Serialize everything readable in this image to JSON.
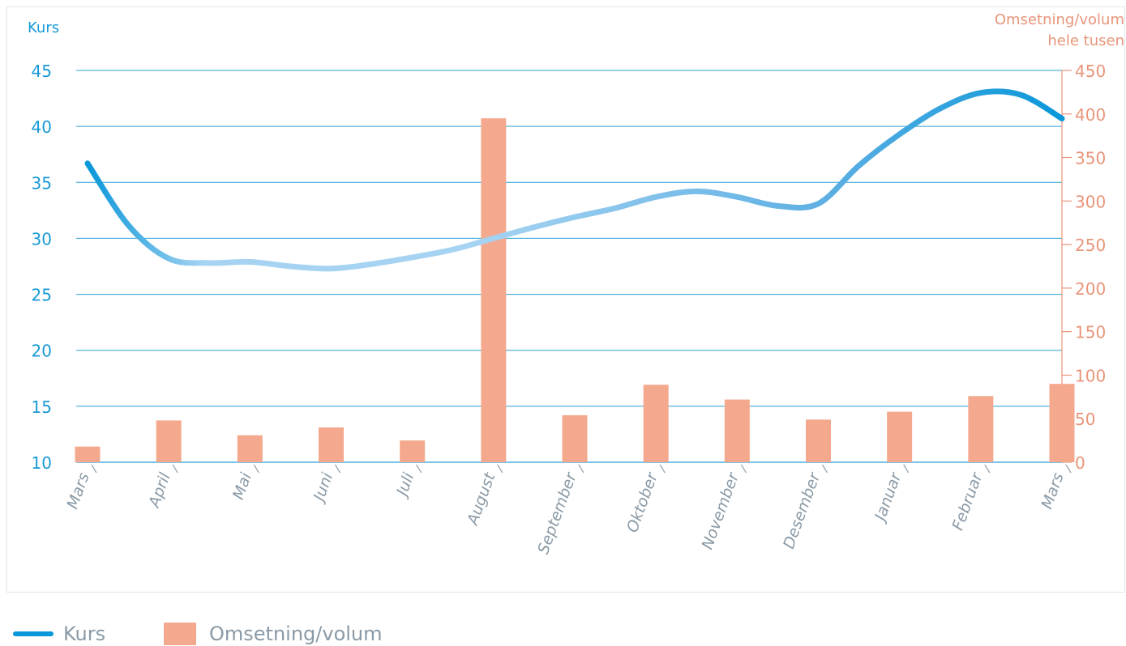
{
  "chart_data": {
    "type": "bar+line",
    "y_left_label": "Kurs",
    "y_right_label_lines": [
      "Omsetning/volum",
      "hele tusen"
    ],
    "y_left_ticks": [
      10,
      15,
      20,
      25,
      30,
      35,
      40,
      45
    ],
    "y_left_range": [
      10,
      45
    ],
    "y_right_ticks": [
      0,
      50,
      100,
      150,
      200,
      250,
      300,
      350,
      400,
      450
    ],
    "y_right_range": [
      0,
      450
    ],
    "categories": [
      "Mars",
      "April",
      "Mai",
      "Juni",
      "Juli",
      "August",
      "September",
      "Oktober",
      "November",
      "Desember",
      "Januar",
      "Februar",
      "Mars"
    ],
    "series": [
      {
        "name": "Omsetning/volum",
        "type": "bar",
        "axis": "right",
        "values": [
          18,
          48,
          31,
          40,
          25,
          395,
          54,
          89,
          72,
          49,
          58,
          76,
          90
        ]
      },
      {
        "name": "Kurs",
        "type": "line",
        "axis": "left",
        "x": [
          0,
          0.5,
          1,
          1.5,
          2,
          2.5,
          3,
          3.5,
          4,
          4.5,
          5,
          5.5,
          6,
          6.5,
          7,
          7.5,
          8,
          8.5,
          9,
          9.5,
          10,
          10.5,
          11,
          11.5,
          12
        ],
        "values": [
          36.7,
          31.2,
          28.2,
          27.8,
          27.9,
          27.5,
          27.3,
          27.7,
          28.3,
          29.0,
          30.0,
          31.0,
          31.9,
          32.7,
          33.7,
          34.2,
          33.7,
          32.9,
          33.1,
          36.5,
          39.3,
          41.6,
          43.0,
          42.8,
          40.7
        ]
      }
    ],
    "grid": true,
    "legend_position": "bottom-left",
    "colors": {
      "left_axis": "#1a9ad6",
      "right_axis": "#e8957a",
      "bar": "#f4a98e",
      "grid": "#2a9fd6",
      "line_light": "#a6d3f2",
      "line_dark": "#0a97d9",
      "category_label": "#8a9aa6"
    }
  },
  "legend": [
    {
      "label": "Kurs",
      "swatch": "line",
      "color": "#0a97d9"
    },
    {
      "label": "Omsetning/volum",
      "swatch": "bar",
      "color": "#f4a98e"
    }
  ]
}
